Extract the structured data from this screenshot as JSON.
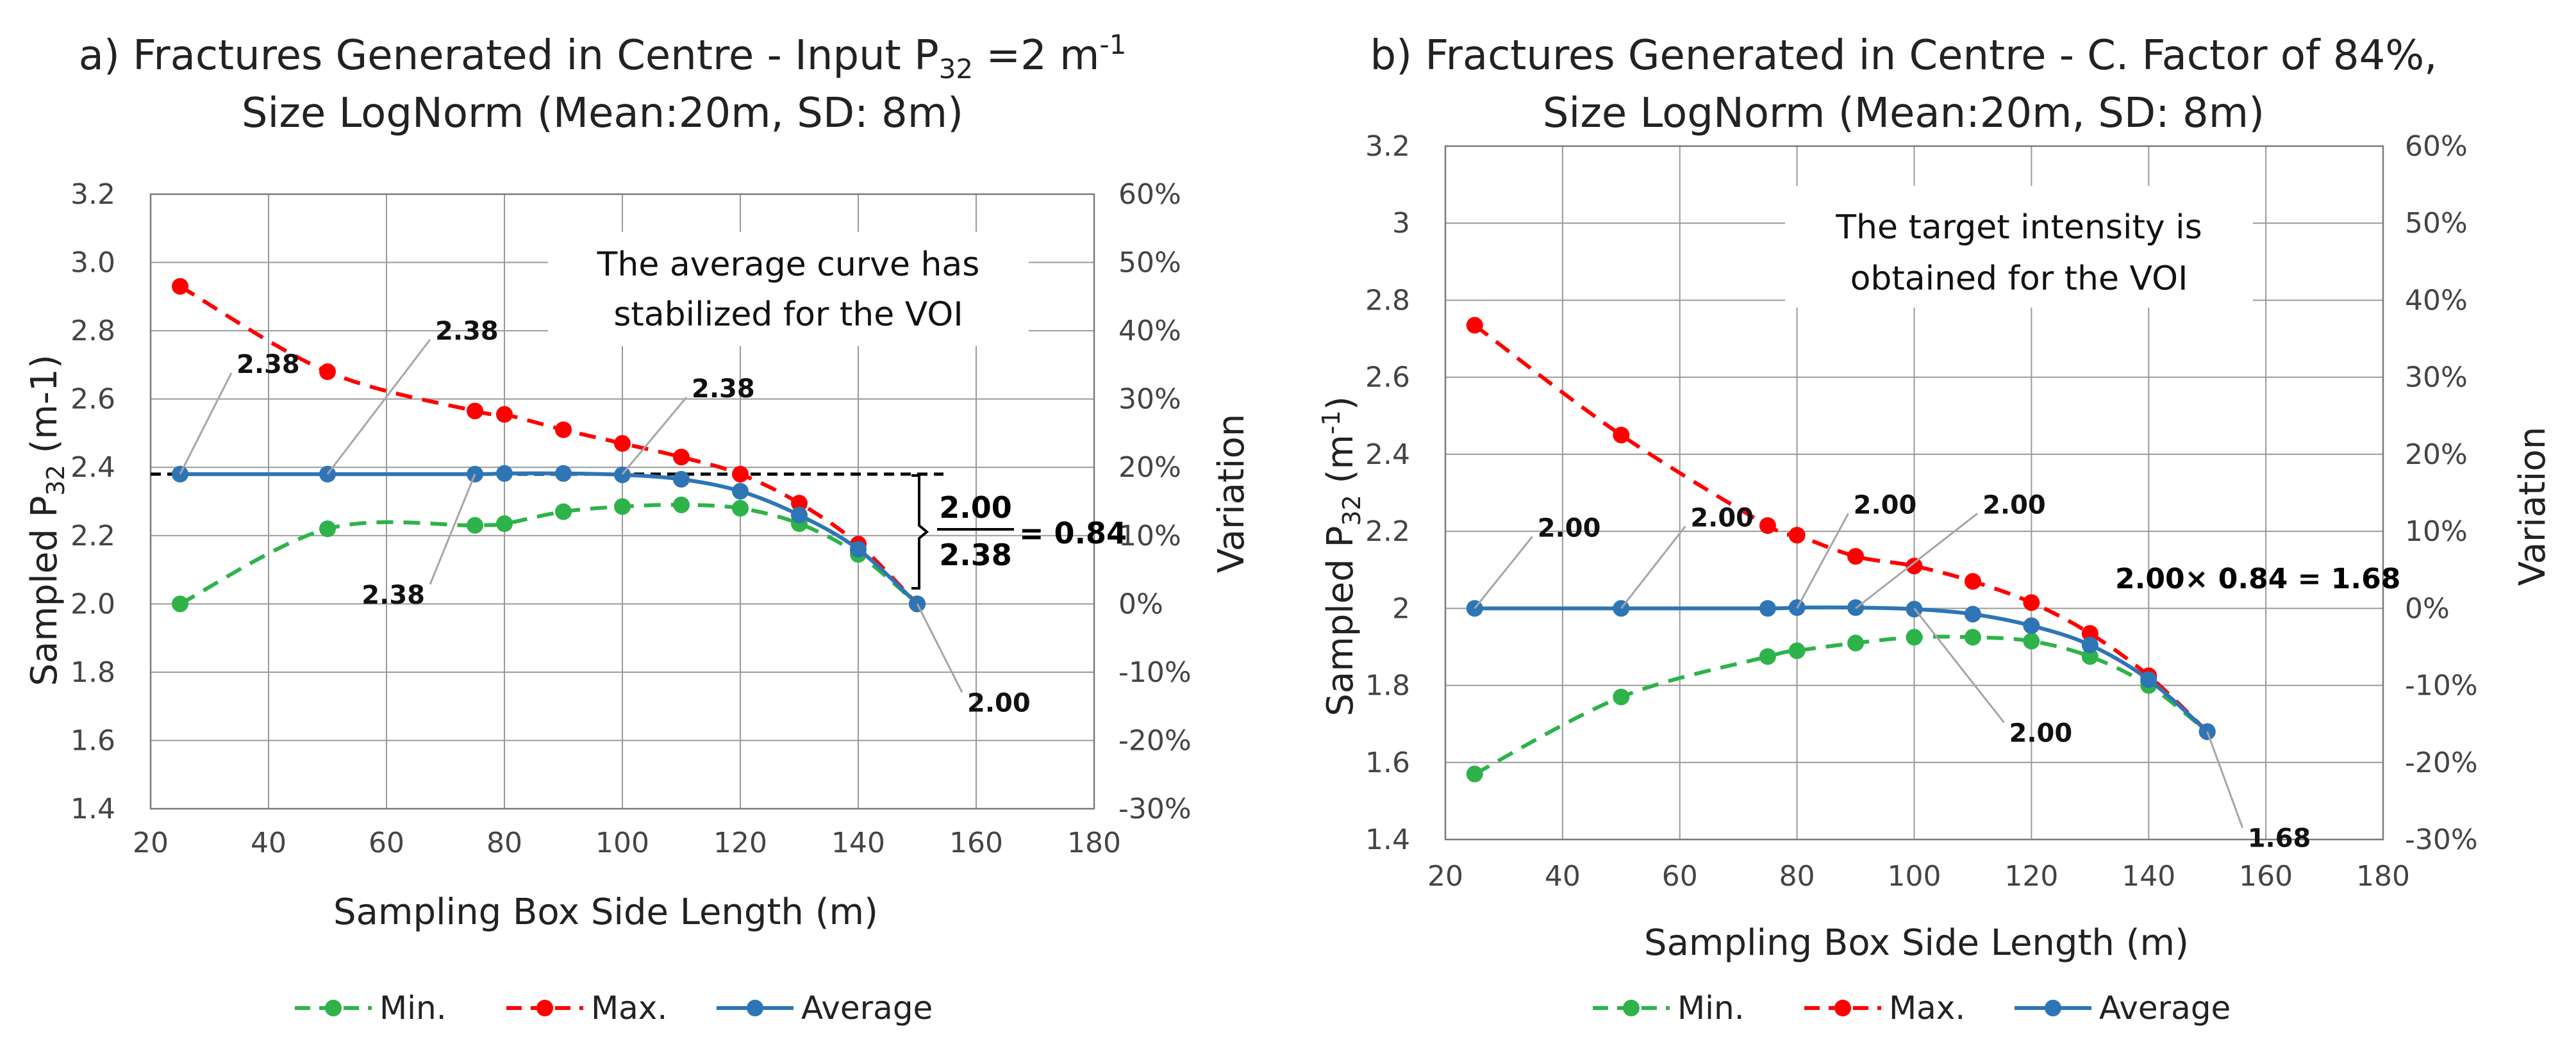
{
  "chart_data": [
    {
      "type": "line",
      "title_line1_prefix": "a) Fractures Generated in Centre  - Input P",
      "title_line1_sub": "32",
      "title_line1_mid": " =2 m",
      "title_line1_sup": "-1",
      "title_line2": "Size LogNorm (Mean:20m, SD: 8m)",
      "xlabel": "Sampling Box Side Length (m)",
      "ylabel_prefix": "Sampled P",
      "ylabel_sub": "32",
      "ylabel_suffix": " (m-1)",
      "y2label": "Variation",
      "xlim": [
        20,
        180
      ],
      "x_ticks": [
        20,
        40,
        60,
        80,
        100,
        120,
        140,
        160,
        180
      ],
      "ylim": [
        1.4,
        3.2
      ],
      "y_ticks": [
        "1.4",
        "1.6",
        "1.8",
        "2.0",
        "2.2",
        "2.4",
        "2.6",
        "2.8",
        "3.0",
        "3.2"
      ],
      "y2lim": [
        -30,
        60
      ],
      "y2_ticks": [
        "-30%",
        "-20%",
        "-10%",
        "0%",
        "10%",
        "20%",
        "30%",
        "40%",
        "50%",
        "60%"
      ],
      "x": [
        25,
        50,
        75,
        80,
        90,
        100,
        110,
        120,
        130,
        140,
        150
      ],
      "series": [
        {
          "name": "Min.",
          "color": "#2DB34A",
          "style": "dashed",
          "values": [
            2.0,
            2.22,
            2.23,
            2.235,
            2.27,
            2.285,
            2.29,
            2.28,
            2.235,
            2.145,
            2.0
          ]
        },
        {
          "name": "Max.",
          "color": "#FF0000",
          "style": "dashed",
          "values": [
            2.93,
            2.68,
            2.565,
            2.555,
            2.51,
            2.47,
            2.43,
            2.38,
            2.295,
            2.175,
            2.0
          ]
        },
        {
          "name": "Average",
          "color": "#2E75B6",
          "style": "solid",
          "values": [
            2.38,
            2.38,
            2.38,
            2.382,
            2.382,
            2.378,
            2.365,
            2.33,
            2.26,
            2.16,
            2.0
          ]
        }
      ],
      "reference_line": {
        "value": 2.38,
        "color": "#000000"
      },
      "callouts": [
        {
          "text": "2.38",
          "x": 25,
          "y": 2.38
        },
        {
          "text": "2.38",
          "x": 50,
          "y": 2.38
        },
        {
          "text": "2.38",
          "x": 75,
          "y": 2.38
        },
        {
          "text": "2.38",
          "x": 100,
          "y": 2.38
        },
        {
          "text": "2.00",
          "x": 150,
          "y": 2.0
        }
      ],
      "annotation_lines": [
        "The average curve has",
        "stabilized for the VOI"
      ],
      "formula": {
        "numerator": "2.00",
        "denominator": "2.38",
        "result": "= 0.84"
      },
      "legend": [
        "Min.",
        "Max.",
        "Average"
      ]
    },
    {
      "type": "line",
      "title_line1": "b) Fractures Generated in Centre - C. Factor of 84%,",
      "title_line2": "Size LogNorm (Mean:20m, SD: 8m)",
      "xlabel": "Sampling Box Side Length (m)",
      "ylabel_prefix": "Sampled P",
      "ylabel_sub": "32",
      "ylabel_mid": " (m",
      "ylabel_sup": "-1",
      "ylabel_end": ")",
      "y2label": "Variation",
      "xlim": [
        20,
        180
      ],
      "x_ticks": [
        20,
        40,
        60,
        80,
        100,
        120,
        140,
        160,
        180
      ],
      "ylim": [
        1.4,
        3.2
      ],
      "y_ticks": [
        "1.4",
        "1.6",
        "1.8",
        "2",
        "2.2",
        "2.4",
        "2.6",
        "2.8",
        "3",
        "3.2"
      ],
      "y2lim": [
        -30,
        60
      ],
      "y2_ticks": [
        "-30%",
        "-20%",
        "-10%",
        "0%",
        "10%",
        "20%",
        "30%",
        "40%",
        "50%",
        "60%"
      ],
      "x": [
        25,
        50,
        75,
        80,
        90,
        100,
        110,
        120,
        130,
        140,
        150
      ],
      "series": [
        {
          "name": "Min.",
          "color": "#2DB34A",
          "style": "dashed",
          "values": [
            1.57,
            1.77,
            1.875,
            1.89,
            1.91,
            1.925,
            1.925,
            1.915,
            1.875,
            1.8,
            1.68
          ]
        },
        {
          "name": "Max.",
          "color": "#FF0000",
          "style": "dashed",
          "values": [
            2.735,
            2.45,
            2.215,
            2.19,
            2.135,
            2.11,
            2.07,
            2.015,
            1.935,
            1.825,
            1.68
          ]
        },
        {
          "name": "Average",
          "color": "#2E75B6",
          "style": "solid",
          "values": [
            2.0,
            2.0,
            2.0,
            2.002,
            2.002,
            1.998,
            1.985,
            1.955,
            1.905,
            1.815,
            1.68
          ]
        }
      ],
      "callouts": [
        {
          "text": "2.00",
          "x": 25,
          "y": 2.0
        },
        {
          "text": "2.00",
          "x": 50,
          "y": 2.0
        },
        {
          "text": "2.00",
          "x": 80,
          "y": 2.0
        },
        {
          "text": "2.00",
          "x": 90,
          "y": 2.0
        },
        {
          "text": "2.00",
          "x": 100,
          "y": 2.0
        },
        {
          "text": "1.68",
          "x": 150,
          "y": 1.68
        }
      ],
      "annotation_lines": [
        "The target intensity is",
        "obtained for the VOI"
      ],
      "formula": {
        "text": "2.00× 0.84 = 1.68"
      },
      "legend": [
        "Min.",
        "Max.",
        "Average"
      ]
    }
  ]
}
